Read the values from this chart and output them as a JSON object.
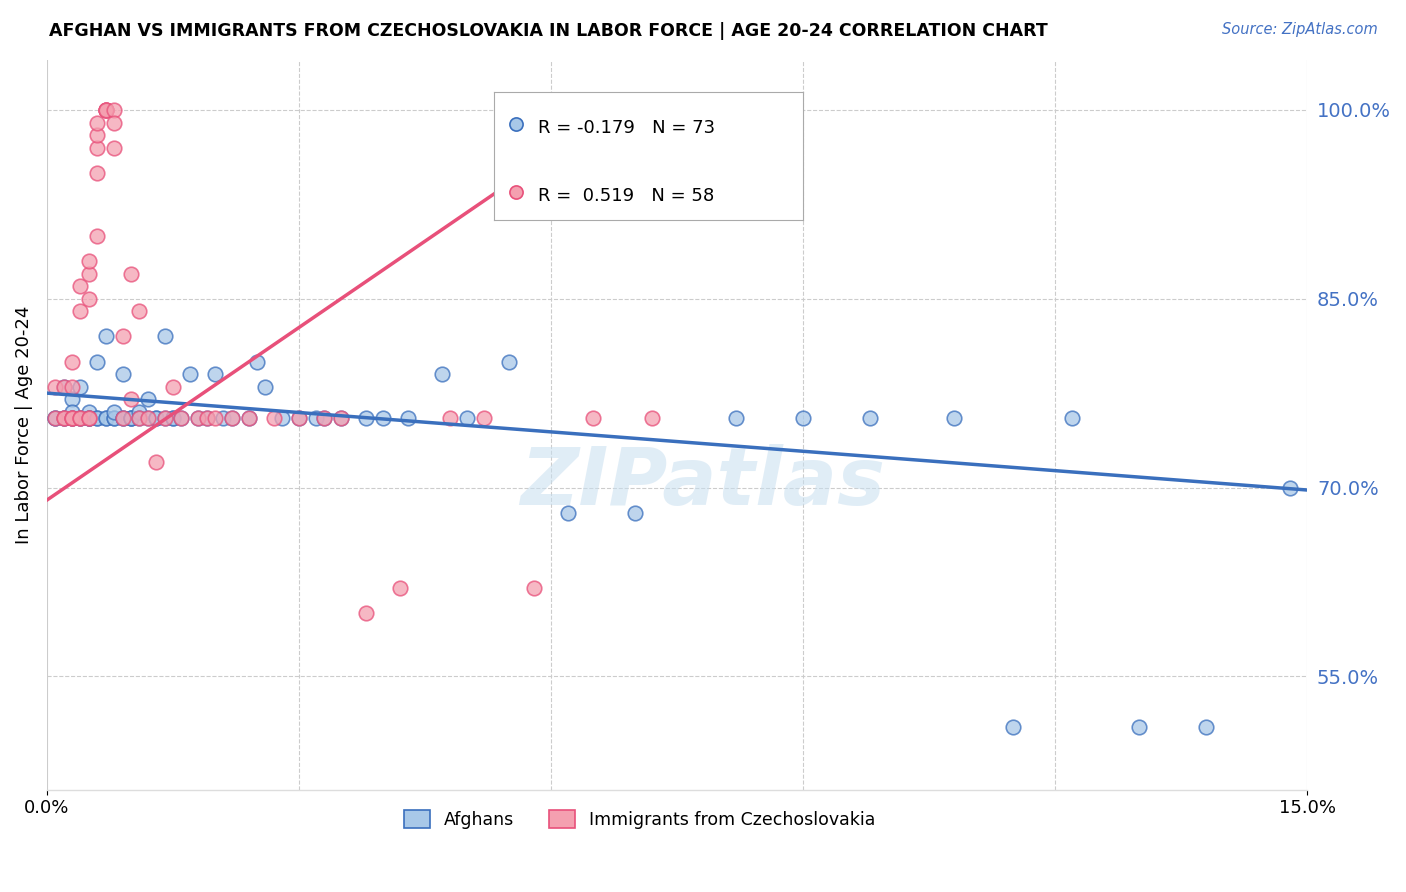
{
  "title": "AFGHAN VS IMMIGRANTS FROM CZECHOSLOVAKIA IN LABOR FORCE | AGE 20-24 CORRELATION CHART",
  "source": "Source: ZipAtlas.com",
  "ylabel": "In Labor Force | Age 20-24",
  "ytick_values": [
    0.55,
    0.7,
    0.85,
    1.0
  ],
  "xlim": [
    0.0,
    0.15
  ],
  "ylim": [
    0.46,
    1.04
  ],
  "legend_blue_r": "-0.179",
  "legend_blue_n": "73",
  "legend_pink_r": "0.519",
  "legend_pink_n": "58",
  "blue_scatter_color": "#a8c8e8",
  "pink_scatter_color": "#f4a0b0",
  "blue_line_color": "#3a6fbd",
  "pink_line_color": "#e8507a",
  "watermark": "ZIPatlas",
  "blue_line_x0": 0.0,
  "blue_line_y0": 0.775,
  "blue_line_x1": 0.15,
  "blue_line_y1": 0.698,
  "pink_line_x0": 0.0,
  "pink_line_y0": 0.69,
  "pink_line_x1": 0.07,
  "pink_line_y1": 1.01,
  "blue_points_x": [
    0.001,
    0.001,
    0.002,
    0.002,
    0.002,
    0.003,
    0.003,
    0.003,
    0.003,
    0.004,
    0.004,
    0.004,
    0.005,
    0.005,
    0.005,
    0.005,
    0.006,
    0.006,
    0.006,
    0.007,
    0.007,
    0.007,
    0.008,
    0.008,
    0.008,
    0.009,
    0.009,
    0.009,
    0.01,
    0.01,
    0.01,
    0.011,
    0.011,
    0.012,
    0.012,
    0.013,
    0.013,
    0.014,
    0.014,
    0.015,
    0.015,
    0.016,
    0.017,
    0.018,
    0.019,
    0.02,
    0.021,
    0.022,
    0.024,
    0.025,
    0.026,
    0.028,
    0.03,
    0.032,
    0.033,
    0.035,
    0.038,
    0.04,
    0.043,
    0.047,
    0.05,
    0.055,
    0.062,
    0.07,
    0.082,
    0.09,
    0.098,
    0.108,
    0.115,
    0.122,
    0.13,
    0.138,
    0.148
  ],
  "blue_points_y": [
    0.755,
    0.755,
    0.78,
    0.755,
    0.755,
    0.755,
    0.77,
    0.76,
    0.755,
    0.755,
    0.78,
    0.755,
    0.755,
    0.76,
    0.755,
    0.755,
    0.8,
    0.755,
    0.755,
    0.82,
    0.755,
    0.755,
    0.755,
    0.755,
    0.76,
    0.755,
    0.755,
    0.79,
    0.755,
    0.755,
    0.755,
    0.76,
    0.755,
    0.77,
    0.755,
    0.755,
    0.755,
    0.755,
    0.82,
    0.755,
    0.755,
    0.755,
    0.79,
    0.755,
    0.755,
    0.79,
    0.755,
    0.755,
    0.755,
    0.8,
    0.78,
    0.755,
    0.755,
    0.755,
    0.755,
    0.755,
    0.755,
    0.755,
    0.755,
    0.79,
    0.755,
    0.8,
    0.68,
    0.68,
    0.755,
    0.755,
    0.755,
    0.755,
    0.51,
    0.755,
    0.51,
    0.51,
    0.7
  ],
  "pink_points_x": [
    0.001,
    0.001,
    0.002,
    0.002,
    0.002,
    0.003,
    0.003,
    0.003,
    0.003,
    0.003,
    0.004,
    0.004,
    0.004,
    0.004,
    0.005,
    0.005,
    0.005,
    0.005,
    0.005,
    0.006,
    0.006,
    0.006,
    0.006,
    0.006,
    0.007,
    0.007,
    0.007,
    0.007,
    0.008,
    0.008,
    0.008,
    0.009,
    0.009,
    0.01,
    0.01,
    0.011,
    0.011,
    0.012,
    0.013,
    0.014,
    0.015,
    0.016,
    0.018,
    0.019,
    0.02,
    0.022,
    0.024,
    0.027,
    0.03,
    0.033,
    0.035,
    0.038,
    0.042,
    0.048,
    0.052,
    0.058,
    0.065,
    0.072
  ],
  "pink_points_y": [
    0.755,
    0.78,
    0.755,
    0.755,
    0.78,
    0.8,
    0.755,
    0.78,
    0.755,
    0.755,
    0.84,
    0.86,
    0.755,
    0.755,
    0.87,
    0.85,
    0.88,
    0.755,
    0.755,
    0.9,
    0.95,
    0.97,
    0.98,
    0.99,
    1.0,
    1.0,
    1.0,
    1.0,
    1.0,
    0.99,
    0.97,
    0.82,
    0.755,
    0.87,
    0.77,
    0.84,
    0.755,
    0.755,
    0.72,
    0.755,
    0.78,
    0.755,
    0.755,
    0.755,
    0.755,
    0.755,
    0.755,
    0.755,
    0.755,
    0.755,
    0.755,
    0.6,
    0.62,
    0.755,
    0.755,
    0.62,
    0.755,
    0.755
  ]
}
